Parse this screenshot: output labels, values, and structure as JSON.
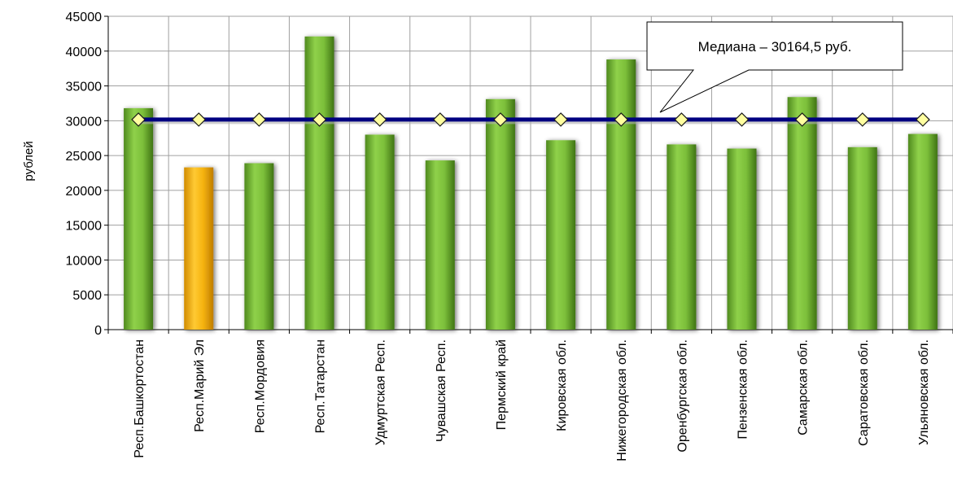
{
  "chart_data": {
    "type": "bar",
    "ylabel": "рублей",
    "xlabel": "",
    "title": "",
    "ylim": [
      0,
      45000
    ],
    "yticks": [
      0,
      5000,
      10000,
      15000,
      20000,
      25000,
      30000,
      35000,
      40000,
      45000
    ],
    "grid": true,
    "categories": [
      "Респ.Башкортостан",
      "Респ.Марий Эл",
      "Респ.Мордовия",
      "Респ.Татарстан",
      "Удмуртская Респ.",
      "Чувашская Респ.",
      "Пермский край",
      "Кировская обл.",
      "Нижегородская обл.",
      "Оренбургская обл.",
      "Пензенская обл.",
      "Самарская обл.",
      "Саратовская обл.",
      "Ульяновская обл."
    ],
    "series": [
      {
        "type": "bar",
        "values": [
          31800,
          23300,
          23900,
          42100,
          28000,
          24300,
          33100,
          27200,
          38800,
          26600,
          26000,
          33400,
          26200,
          28100
        ],
        "colors": [
          "#7cbf3a",
          "#f5b30f",
          "#7cbf3a",
          "#7cbf3a",
          "#7cbf3a",
          "#7cbf3a",
          "#7cbf3a",
          "#7cbf3a",
          "#7cbf3a",
          "#7cbf3a",
          "#7cbf3a",
          "#7cbf3a",
          "#7cbf3a",
          "#7cbf3a"
        ]
      },
      {
        "type": "line",
        "values": [
          30164.5,
          30164.5,
          30164.5,
          30164.5,
          30164.5,
          30164.5,
          30164.5,
          30164.5,
          30164.5,
          30164.5,
          30164.5,
          30164.5,
          30164.5,
          30164.5
        ],
        "color": "#000080",
        "marker_color": "#ffffa0"
      }
    ],
    "annotation": {
      "text": "Медиана – 30164,5 руб."
    }
  }
}
